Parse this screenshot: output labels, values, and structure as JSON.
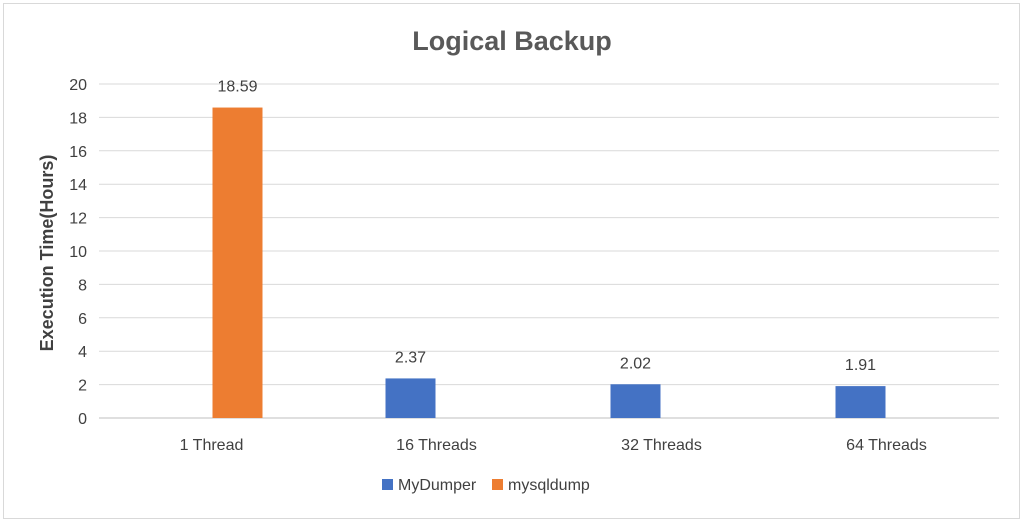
{
  "chart_data": {
    "type": "bar",
    "title": "Logical Backup",
    "xlabel": "",
    "ylabel": "Execution Time(Hours)",
    "ylim": [
      0,
      20
    ],
    "yticks": [
      0,
      2,
      4,
      6,
      8,
      10,
      12,
      14,
      16,
      18,
      20
    ],
    "categories": [
      "1 Thread",
      "16 Threads",
      "32 Threads",
      "64 Threads"
    ],
    "series": [
      {
        "name": "MyDumper",
        "color": "#4472c4",
        "values": [
          null,
          2.37,
          2.02,
          1.91
        ]
      },
      {
        "name": "mysqldump",
        "color": "#ed7d31",
        "values": [
          18.59,
          null,
          null,
          null
        ]
      }
    ],
    "grid": true,
    "legend_position": "bottom"
  }
}
